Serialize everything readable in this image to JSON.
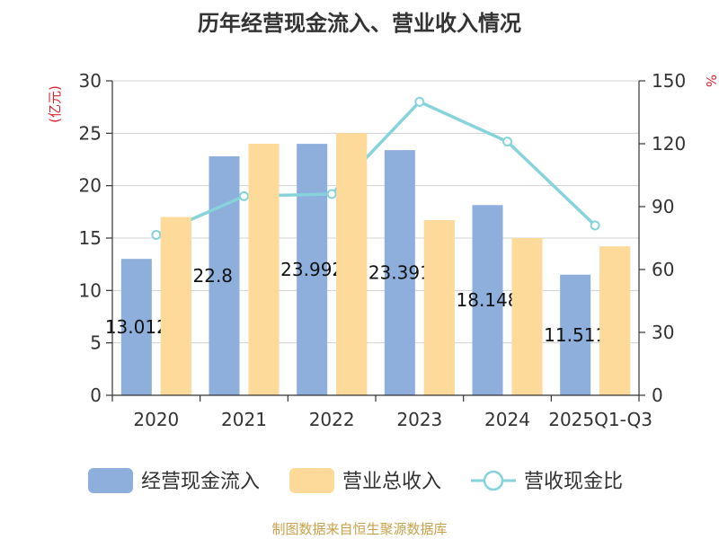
{
  "chart_data": {
    "type": "bar",
    "title": "历年经营现金流入、营业收入情况",
    "categories": [
      "2020",
      "2021",
      "2022",
      "2023",
      "2024",
      "2025Q1-Q3"
    ],
    "y_left": {
      "label": "(亿元)",
      "range": [
        0,
        30
      ],
      "ticks": [
        0,
        5,
        10,
        15,
        20,
        25,
        30
      ]
    },
    "y_right": {
      "label": "%",
      "range": [
        0,
        150
      ],
      "ticks": [
        0,
        30,
        60,
        90,
        120,
        150
      ]
    },
    "grid": true,
    "legend_position": "bottom",
    "series": [
      {
        "name": "经营现金流入",
        "type": "bar",
        "axis": "left",
        "color": "#8eaedb",
        "values": [
          13.012,
          22.8,
          23.992,
          23.391,
          18.148,
          11.511
        ],
        "data_labels": [
          "13.012",
          "22.8",
          "23.992",
          "23.391",
          "18.148",
          "11.511"
        ]
      },
      {
        "name": "营业总收入",
        "type": "bar",
        "axis": "left",
        "color": "#fdd99a",
        "values": [
          17.0,
          24.0,
          25.0,
          16.7,
          15.0,
          14.2
        ]
      },
      {
        "name": "营收现金比",
        "type": "line",
        "axis": "right",
        "color": "#86d3db",
        "values": [
          76.5,
          95.0,
          96.0,
          140.0,
          121.0,
          81.0
        ]
      }
    ],
    "source": "制图数据来自恒生聚源数据库"
  }
}
